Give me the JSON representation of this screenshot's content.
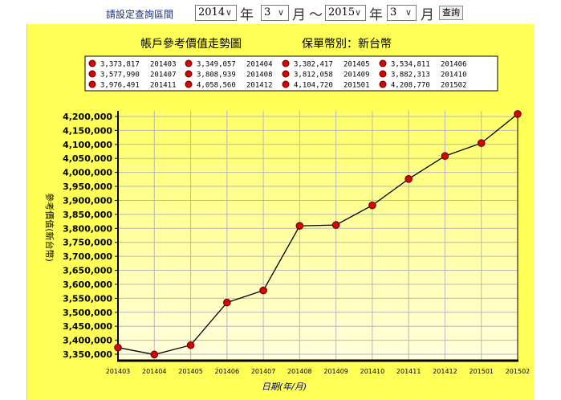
{
  "filter_bar": {
    "prompt": "請設定查詢區間",
    "start_year": "2014",
    "start_month": "3",
    "end_year": "2015",
    "end_month": "3",
    "year_unit": "年",
    "month_unit": "月",
    "range_separator": "～",
    "query_button": "查詢"
  },
  "chart_data": {
    "type": "line",
    "title": "帳戶參考價值走勢圖",
    "subtitle": "保單幣別：新台幣",
    "xlabel": "日期(年/月)",
    "ylabel": "參考價值(新台幣)",
    "ylim": [
      3330000,
      4220000
    ],
    "yticks": [
      3350000,
      3400000,
      3450000,
      3500000,
      3550000,
      3600000,
      3650000,
      3700000,
      3750000,
      3800000,
      3850000,
      3900000,
      3950000,
      4000000,
      4050000,
      4100000,
      4150000,
      4200000
    ],
    "ytick_labels": [
      "3,350,000",
      "3,400,000",
      "3,450,000",
      "3,500,000",
      "3,550,000",
      "3,600,000",
      "3,650,000",
      "3,700,000",
      "3,750,000",
      "3,800,000",
      "3,850,000",
      "3,900,000",
      "3,950,000",
      "4,000,000",
      "4,050,000",
      "4,100,000",
      "4,150,000",
      "4,200,000"
    ],
    "categories": [
      "201403",
      "201404",
      "201405",
      "201406",
      "201407",
      "201408",
      "201409",
      "201410",
      "201411",
      "201412",
      "201501",
      "201502"
    ],
    "values": [
      3373817,
      3349057,
      3382417,
      3534811,
      3577990,
      3808939,
      3812058,
      3882313,
      3976491,
      4058560,
      4104720,
      4208770
    ],
    "legend_values": [
      "3,373,817",
      "3,349,057",
      "3,382,417",
      "3,534,811",
      "3,577,990",
      "3,808,939",
      "3,812,058",
      "3,882,313",
      "3,976,491",
      "4,058,560",
      "4,104,720",
      "4,208,770"
    ],
    "grid": true,
    "legend_position": "top",
    "colors": {
      "panel": "#ffff55",
      "plot_top": "#ffff66",
      "plot_bottom": "#ffffdd",
      "grid": "#b8b8b8",
      "line": "#000000",
      "marker": "#dd0000",
      "marker_edge": "#550000",
      "axis": "#000000",
      "title": "#000000",
      "xlabel": "#000080"
    }
  }
}
